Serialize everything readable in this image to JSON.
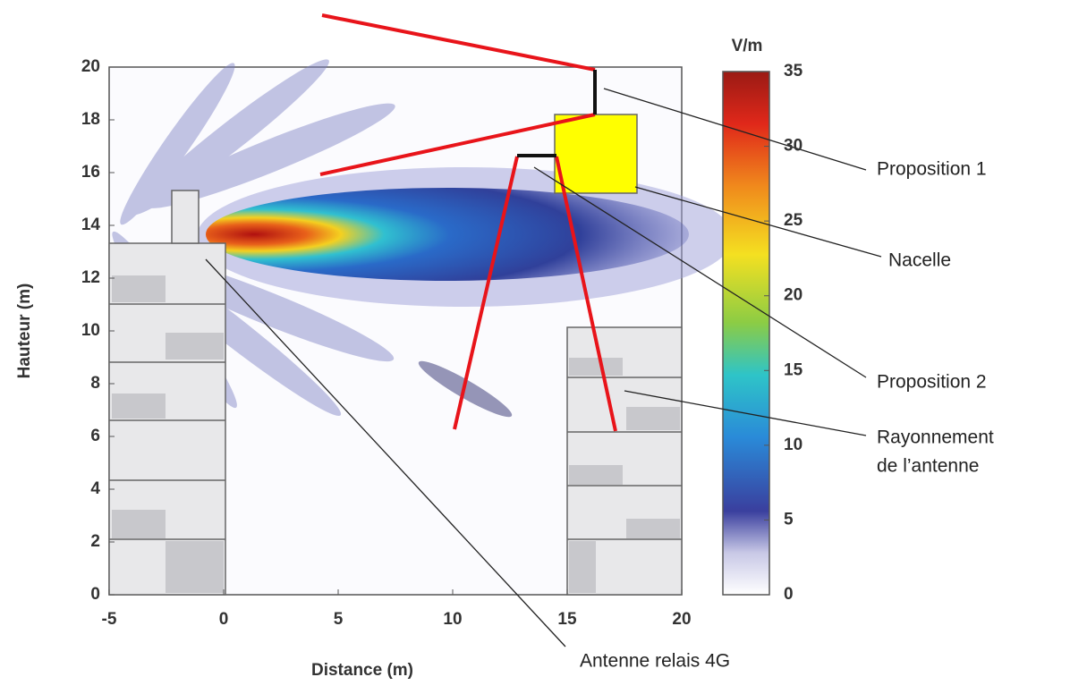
{
  "plot": {
    "xlabel": "Distance (m)",
    "ylabel": "Hauteur (m)",
    "xlim": [
      -5,
      20
    ],
    "ylim": [
      0,
      20
    ],
    "xticks": [
      -5,
      0,
      5,
      10,
      15,
      20
    ],
    "yticks": [
      0,
      2,
      4,
      6,
      8,
      10,
      12,
      14,
      16,
      18,
      20
    ]
  },
  "colorbar": {
    "unit": "V/m",
    "lim": [
      0,
      35
    ],
    "ticks": [
      0,
      5,
      10,
      15,
      20,
      25,
      30,
      35
    ]
  },
  "annotations": [
    "Proposition 1",
    "Nacelle",
    "Proposition 2",
    "Rayonnement",
    "de l’antenne",
    "Antenne relais 4G"
  ]
}
